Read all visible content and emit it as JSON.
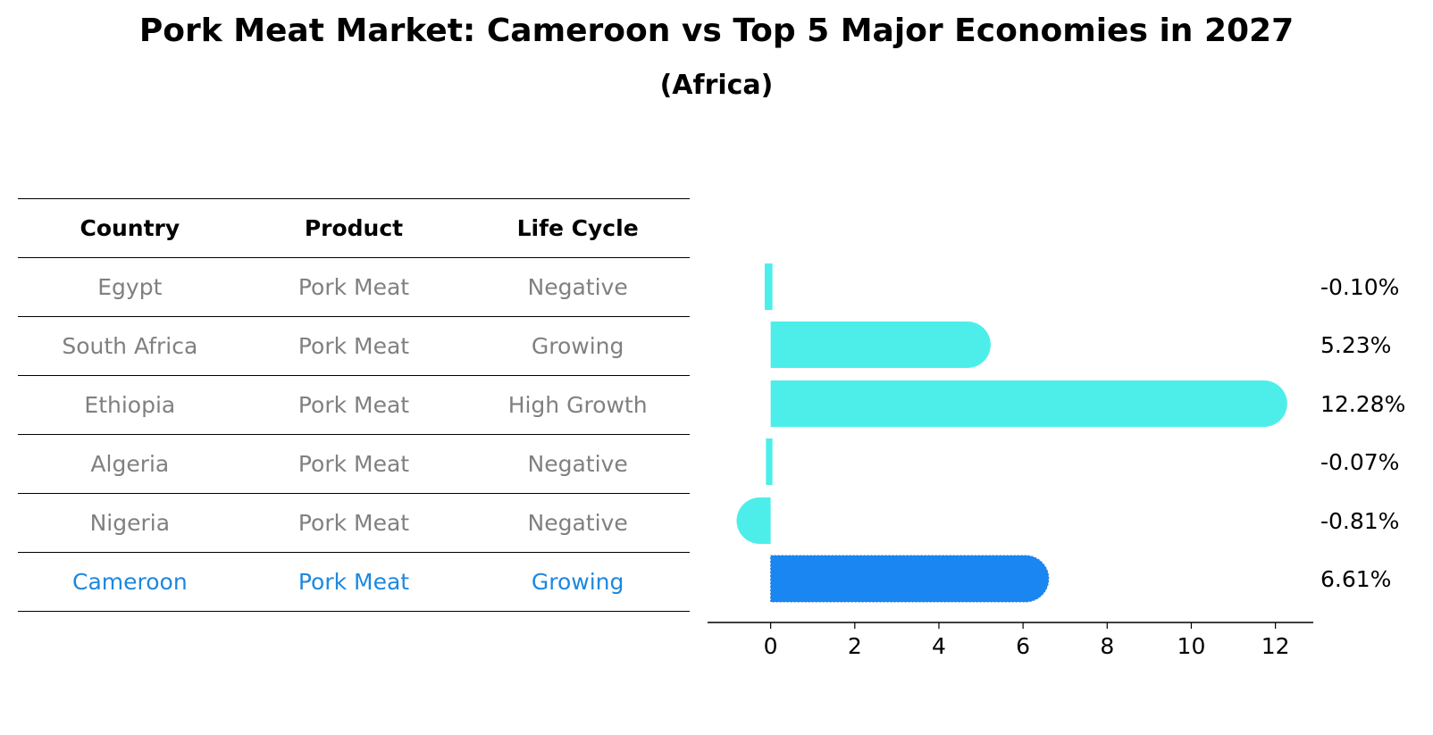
{
  "title": "Pork Meat Market: Cameroon vs Top 5 Major Economies in 2027",
  "subtitle": "(Africa)",
  "table": {
    "headers": [
      "Country",
      "Product",
      "Life Cycle"
    ],
    "rows": [
      [
        "Egypt",
        "Pork Meat",
        "Negative"
      ],
      [
        "South Africa",
        "Pork Meat",
        "Growing"
      ],
      [
        "Ethiopia",
        "Pork Meat",
        "High Growth"
      ],
      [
        "Algeria",
        "Pork Meat",
        "Negative"
      ],
      [
        "Nigeria",
        "Pork Meat",
        "Negative"
      ],
      [
        "Cameroon",
        "Pork Meat",
        "Growing"
      ]
    ],
    "highlight_row": 5
  },
  "colors": {
    "bar": "#4deeea",
    "highlight_bar": "#1a86f2",
    "highlight_text": "#1c88e0",
    "muted_text": "#808080"
  },
  "chart_data": {
    "type": "bar",
    "orientation": "horizontal",
    "categories": [
      "Egypt",
      "South Africa",
      "Ethiopia",
      "Algeria",
      "Nigeria",
      "Cameroon"
    ],
    "values": [
      -0.1,
      5.23,
      12.28,
      -0.07,
      -0.81,
      6.61
    ],
    "value_labels": [
      "-0.10%",
      "5.23%",
      "12.28%",
      "-0.07%",
      "-0.81%",
      "6.61%"
    ],
    "highlight": "Cameroon",
    "xticks": [
      0,
      2,
      4,
      6,
      8,
      10,
      12
    ],
    "xlim": [
      -1.5,
      12.9
    ],
    "grid": false
  }
}
